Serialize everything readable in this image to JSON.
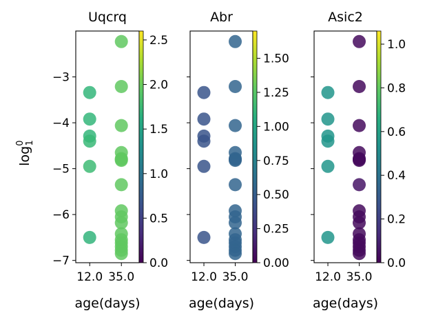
{
  "figure": {
    "ylabel_main": "log",
    "ylabel_sup": "0",
    "ylabel_sub": "1"
  },
  "chart_data": [
    {
      "type": "scatter",
      "title": "Uqcrq",
      "xlabel": "age(days)",
      "x_ticks": [
        "12.0",
        "35.0"
      ],
      "ylim": [
        -7.05,
        -2.0
      ],
      "y_ticks": [
        -3,
        -4,
        -5,
        -6,
        -7
      ],
      "colorbar": {
        "colormap": "viridis",
        "range": [
          0,
          2.6
        ],
        "ticks": [
          0.0,
          0.5,
          1.0,
          1.5,
          2.0,
          2.5
        ]
      },
      "points": [
        {
          "x": "12.0",
          "y": -3.34,
          "c": 1.72
        },
        {
          "x": "12.0",
          "y": -3.92,
          "c": 1.72
        },
        {
          "x": "12.0",
          "y": -4.29,
          "c": 1.72
        },
        {
          "x": "12.0",
          "y": -4.4,
          "c": 1.75
        },
        {
          "x": "12.0",
          "y": -4.95,
          "c": 1.78
        },
        {
          "x": "12.0",
          "y": -6.5,
          "c": 1.7
        },
        {
          "x": "35.0",
          "y": -2.23,
          "c": 1.95
        },
        {
          "x": "35.0",
          "y": -3.21,
          "c": 1.95
        },
        {
          "x": "35.0",
          "y": -4.06,
          "c": 1.95
        },
        {
          "x": "35.0",
          "y": -4.65,
          "c": 1.95
        },
        {
          "x": "35.0",
          "y": -4.78,
          "c": 1.95
        },
        {
          "x": "35.0",
          "y": -4.8,
          "c": 1.95
        },
        {
          "x": "35.0",
          "y": -4.82,
          "c": 1.95
        },
        {
          "x": "35.0",
          "y": -5.35,
          "c": 1.95
        },
        {
          "x": "35.0",
          "y": -5.92,
          "c": 1.95
        },
        {
          "x": "35.0",
          "y": -6.05,
          "c": 1.95
        },
        {
          "x": "35.0",
          "y": -6.18,
          "c": 1.95
        },
        {
          "x": "35.0",
          "y": -6.42,
          "c": 1.95
        },
        {
          "x": "35.0",
          "y": -6.55,
          "c": 1.95
        },
        {
          "x": "35.0",
          "y": -6.62,
          "c": 1.95
        },
        {
          "x": "35.0",
          "y": -6.7,
          "c": 1.95
        },
        {
          "x": "35.0",
          "y": -6.78,
          "c": 1.95
        },
        {
          "x": "35.0",
          "y": -6.85,
          "c": 1.95
        }
      ]
    },
    {
      "type": "scatter",
      "title": "Abr",
      "xlabel": "age(days)",
      "x_ticks": [
        "12.0",
        "35.0"
      ],
      "ylim": [
        -7.05,
        -2.0
      ],
      "y_ticks": [
        -3,
        -4,
        -5,
        -6,
        -7
      ],
      "colorbar": {
        "colormap": "viridis",
        "range": [
          0,
          1.7
        ],
        "ticks": [
          0.0,
          0.25,
          0.5,
          0.75,
          1.0,
          1.25,
          1.5
        ]
      },
      "points": [
        {
          "x": "12.0",
          "y": -3.34,
          "c": 0.45
        },
        {
          "x": "12.0",
          "y": -3.92,
          "c": 0.45
        },
        {
          "x": "12.0",
          "y": -4.29,
          "c": 0.45
        },
        {
          "x": "12.0",
          "y": -4.4,
          "c": 0.45
        },
        {
          "x": "12.0",
          "y": -4.95,
          "c": 0.45
        },
        {
          "x": "12.0",
          "y": -6.5,
          "c": 0.45
        },
        {
          "x": "35.0",
          "y": -2.23,
          "c": 0.55
        },
        {
          "x": "35.0",
          "y": -3.21,
          "c": 0.55
        },
        {
          "x": "35.0",
          "y": -4.06,
          "c": 0.55
        },
        {
          "x": "35.0",
          "y": -4.65,
          "c": 0.55
        },
        {
          "x": "35.0",
          "y": -4.78,
          "c": 0.55
        },
        {
          "x": "35.0",
          "y": -4.8,
          "c": 0.55
        },
        {
          "x": "35.0",
          "y": -4.82,
          "c": 0.55
        },
        {
          "x": "35.0",
          "y": -5.35,
          "c": 0.55
        },
        {
          "x": "35.0",
          "y": -5.92,
          "c": 0.55
        },
        {
          "x": "35.0",
          "y": -6.05,
          "c": 0.55
        },
        {
          "x": "35.0",
          "y": -6.18,
          "c": 0.55
        },
        {
          "x": "35.0",
          "y": -6.42,
          "c": 0.55
        },
        {
          "x": "35.0",
          "y": -6.55,
          "c": 0.55
        },
        {
          "x": "35.0",
          "y": -6.62,
          "c": 0.55
        },
        {
          "x": "35.0",
          "y": -6.7,
          "c": 0.55
        },
        {
          "x": "35.0",
          "y": -6.78,
          "c": 0.55
        },
        {
          "x": "35.0",
          "y": -6.85,
          "c": 0.55
        }
      ]
    },
    {
      "type": "scatter",
      "title": "Asic2",
      "xlabel": "age(days)",
      "x_ticks": [
        "12.0",
        "35.0"
      ],
      "ylim": [
        -7.05,
        -2.0
      ],
      "y_ticks": [
        -3,
        -4,
        -5,
        -6,
        -7
      ],
      "colorbar": {
        "colormap": "viridis",
        "range": [
          0,
          1.06
        ],
        "ticks": [
          0.0,
          0.2,
          0.4,
          0.6,
          0.8,
          1.0
        ]
      },
      "points": [
        {
          "x": "12.0",
          "y": -3.34,
          "c": 0.55
        },
        {
          "x": "12.0",
          "y": -3.92,
          "c": 0.55
        },
        {
          "x": "12.0",
          "y": -4.29,
          "c": 0.55
        },
        {
          "x": "12.0",
          "y": -4.4,
          "c": 0.55
        },
        {
          "x": "12.0",
          "y": -4.95,
          "c": 0.55
        },
        {
          "x": "12.0",
          "y": -6.5,
          "c": 0.55
        },
        {
          "x": "35.0",
          "y": -2.23,
          "c": 0.03
        },
        {
          "x": "35.0",
          "y": -3.21,
          "c": 0.03
        },
        {
          "x": "35.0",
          "y": -4.06,
          "c": 0.03
        },
        {
          "x": "35.0",
          "y": -4.65,
          "c": 0.03
        },
        {
          "x": "35.0",
          "y": -4.78,
          "c": 0.03
        },
        {
          "x": "35.0",
          "y": -4.8,
          "c": 0.03
        },
        {
          "x": "35.0",
          "y": -4.82,
          "c": 0.03
        },
        {
          "x": "35.0",
          "y": -5.35,
          "c": 0.06
        },
        {
          "x": "35.0",
          "y": -5.92,
          "c": 0.03
        },
        {
          "x": "35.0",
          "y": -6.05,
          "c": 0.03
        },
        {
          "x": "35.0",
          "y": -6.18,
          "c": 0.03
        },
        {
          "x": "35.0",
          "y": -6.42,
          "c": 0.03
        },
        {
          "x": "35.0",
          "y": -6.55,
          "c": 0.03
        },
        {
          "x": "35.0",
          "y": -6.62,
          "c": 0.03
        },
        {
          "x": "35.0",
          "y": -6.7,
          "c": 0.03
        },
        {
          "x": "35.0",
          "y": -6.78,
          "c": 0.03
        },
        {
          "x": "35.0",
          "y": -6.85,
          "c": 0.03
        }
      ]
    }
  ]
}
